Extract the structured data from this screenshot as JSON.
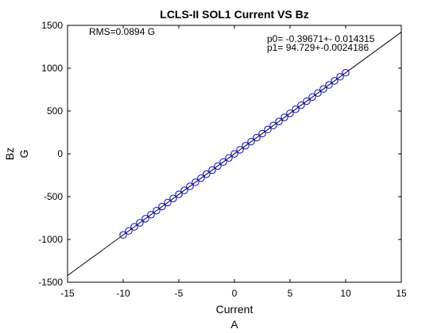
{
  "chart_data": {
    "type": "scatter",
    "title": "LCLS-II SOL1 Current VS Bz",
    "xlabel": "Current",
    "xunit": "A",
    "ylabel": "Bz",
    "yunit": "G",
    "xlim": [
      -15,
      15
    ],
    "ylim": [
      -1500,
      1500
    ],
    "xticks": [
      "-15",
      "-10",
      "-5",
      "0",
      "5",
      "10",
      "15"
    ],
    "yticks": [
      "1500",
      "1000",
      "500",
      "0",
      "-500",
      "-1000",
      "-1500"
    ],
    "grid": false,
    "annotations": {
      "rms": "RMS=0.0894 G",
      "p0": "p0= -0.39671+- 0.014315",
      "p1": "p1=   94.729+-0.0024186"
    },
    "fit": {
      "intercept": -0.39671,
      "slope": 94.729
    },
    "series": [
      {
        "marker": "circle",
        "color": "#0000cc",
        "x": [
          -10,
          -9.5,
          -9,
          -8.5,
          -8,
          -7.5,
          -7,
          -6.5,
          -6,
          -5.5,
          -5,
          -4.5,
          -4,
          -3.5,
          -3,
          -2.5,
          -2,
          -1.5,
          -1,
          -0.5,
          0,
          0.5,
          1,
          1.5,
          2,
          2.5,
          3,
          3.5,
          4,
          4.5,
          5,
          5.5,
          6,
          6.5,
          7,
          7.5,
          8,
          8.5,
          9,
          9.5,
          10
        ],
        "y": [
          -947.7,
          -900.3,
          -852.9,
          -805.6,
          -758.2,
          -710.9,
          -663.5,
          -616.1,
          -568.8,
          -521.4,
          -474.0,
          -426.7,
          -379.3,
          -332.0,
          -284.6,
          -237.2,
          -189.9,
          -142.5,
          -95.1,
          -47.8,
          -0.4,
          47.0,
          94.3,
          141.7,
          189.1,
          236.4,
          283.8,
          331.2,
          378.5,
          425.9,
          473.2,
          520.6,
          568.0,
          615.3,
          662.7,
          710.1,
          757.4,
          804.8,
          852.2,
          899.5,
          946.9
        ]
      }
    ],
    "line_color": "#000000"
  }
}
